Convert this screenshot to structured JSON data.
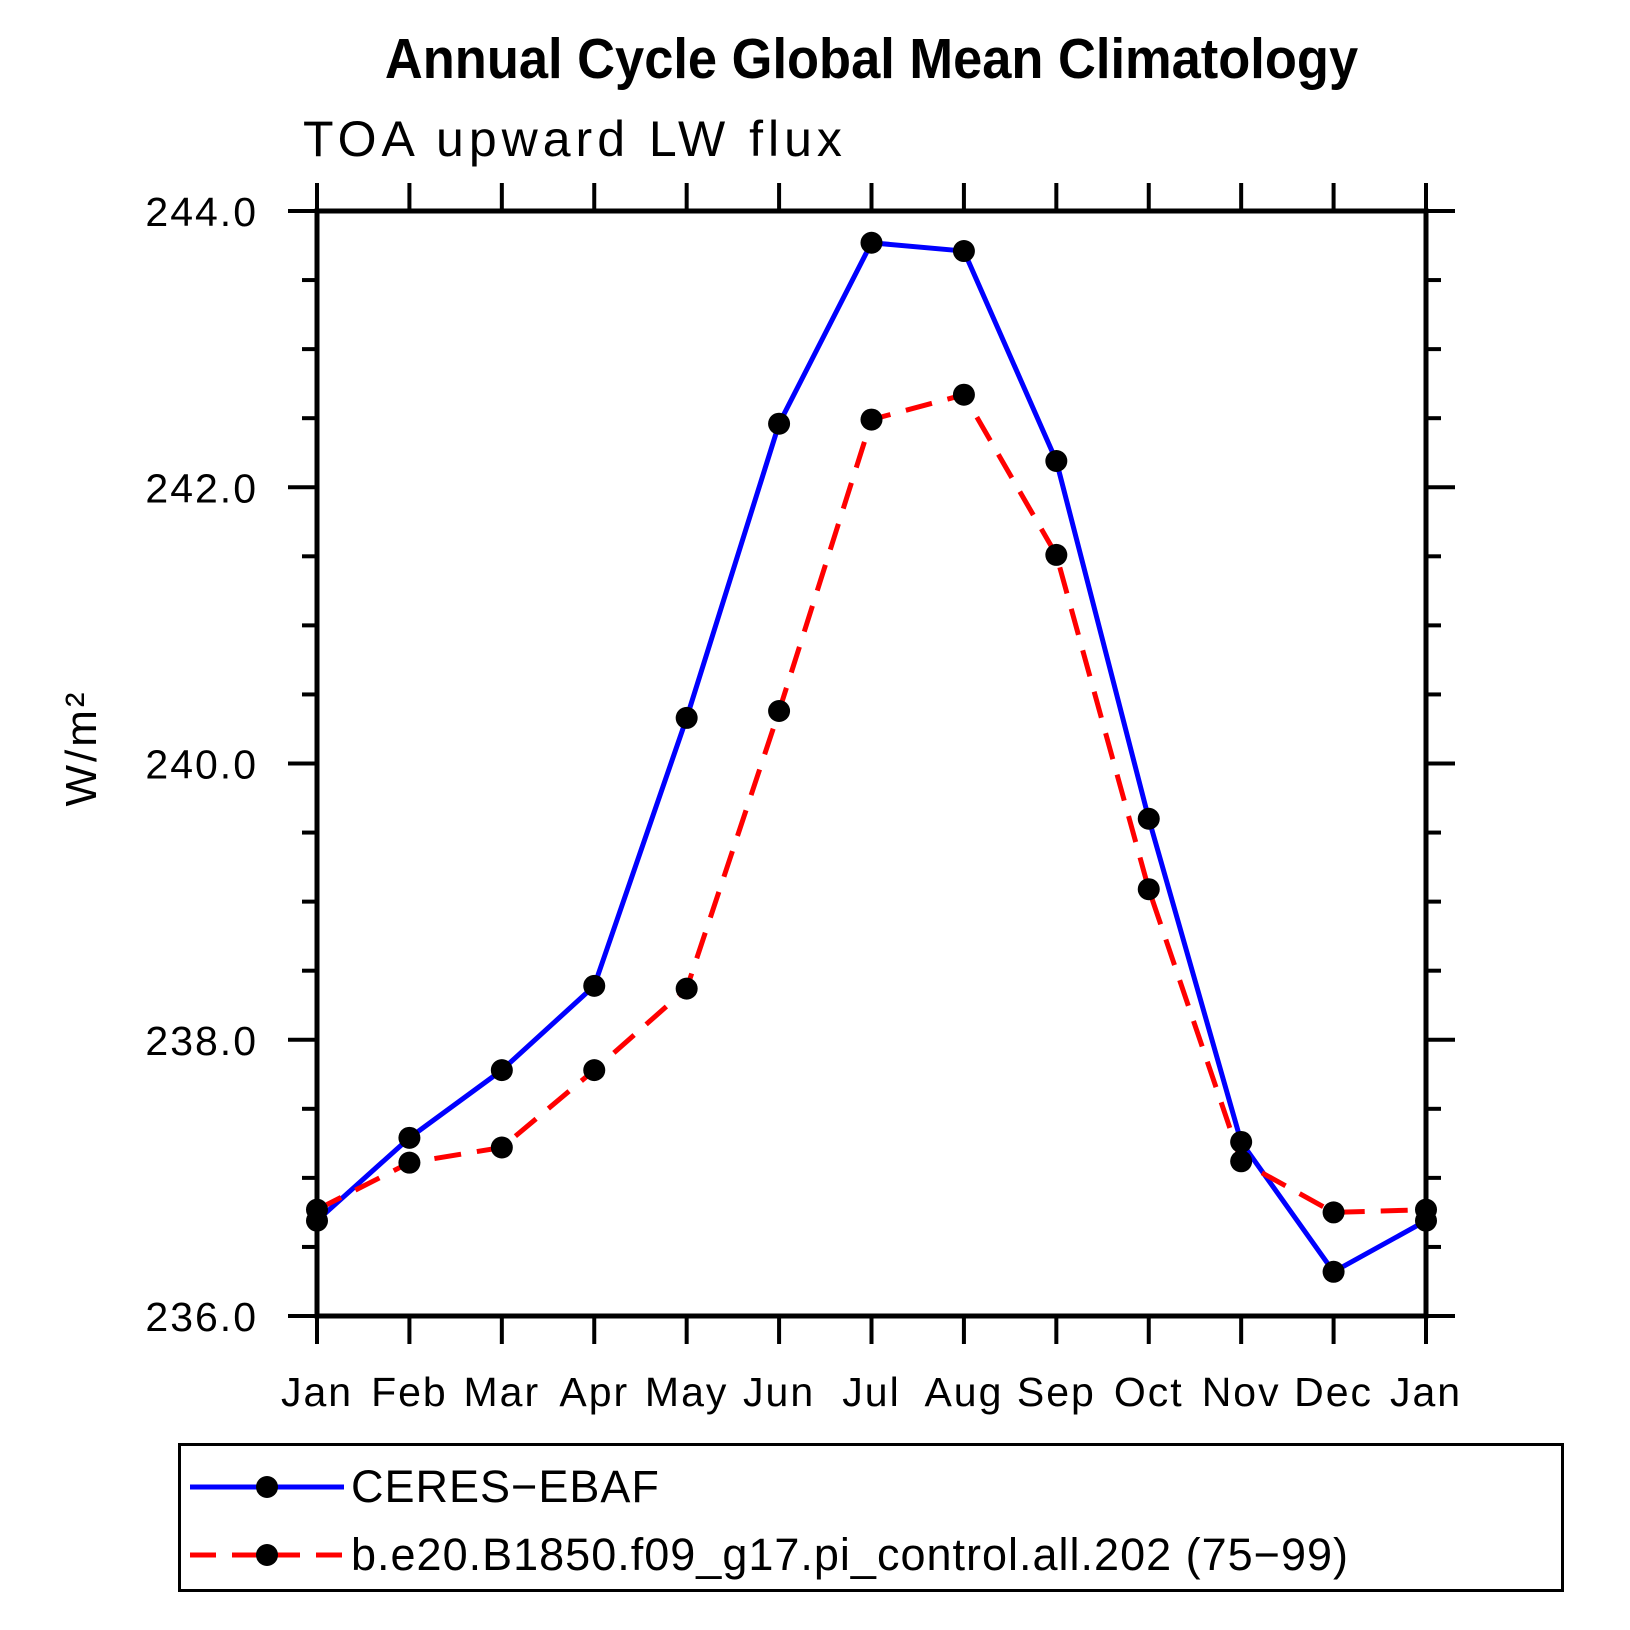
{
  "page": {
    "background": "#ffffff"
  },
  "chart_data": {
    "type": "line",
    "title": "Annual Cycle Global Mean Climatology",
    "subtitle": "TOA upward LW flux",
    "ylabel": "W/m²",
    "xlabel": "",
    "categories": [
      "Jan",
      "Feb",
      "Mar",
      "Apr",
      "May",
      "Jun",
      "Jul",
      "Aug",
      "Sep",
      "Oct",
      "Nov",
      "Dec",
      "Jan"
    ],
    "ylim": [
      236.0,
      244.0
    ],
    "ytick_values": [
      236.0,
      238.0,
      240.0,
      242.0,
      244.0
    ],
    "ytick_labels": [
      "236.0",
      "238.0",
      "240.0",
      "242.0",
      "244.0"
    ],
    "minor_tick_step": 0.5,
    "grid": false,
    "legend_position": "bottom-left-box",
    "axis_color": "#000000",
    "series": [
      {
        "name": "CERES−EBAF",
        "color": "#0000ff",
        "style": "solid",
        "marker": "filled-circle",
        "marker_color": "#000000",
        "values": [
          236.69,
          237.29,
          237.78,
          238.39,
          240.33,
          242.46,
          243.77,
          243.71,
          242.19,
          239.6,
          237.26,
          236.32,
          236.69
        ]
      },
      {
        "name": "b.e20.B1850.f09_g17.pi_control.all.202 (75−99)",
        "color": "#ff0000",
        "style": "dashed",
        "marker": "filled-circle",
        "marker_color": "#000000",
        "values": [
          236.77,
          237.11,
          237.22,
          237.78,
          238.37,
          240.38,
          242.49,
          242.67,
          241.51,
          239.09,
          237.12,
          236.75,
          236.77
        ]
      }
    ]
  }
}
